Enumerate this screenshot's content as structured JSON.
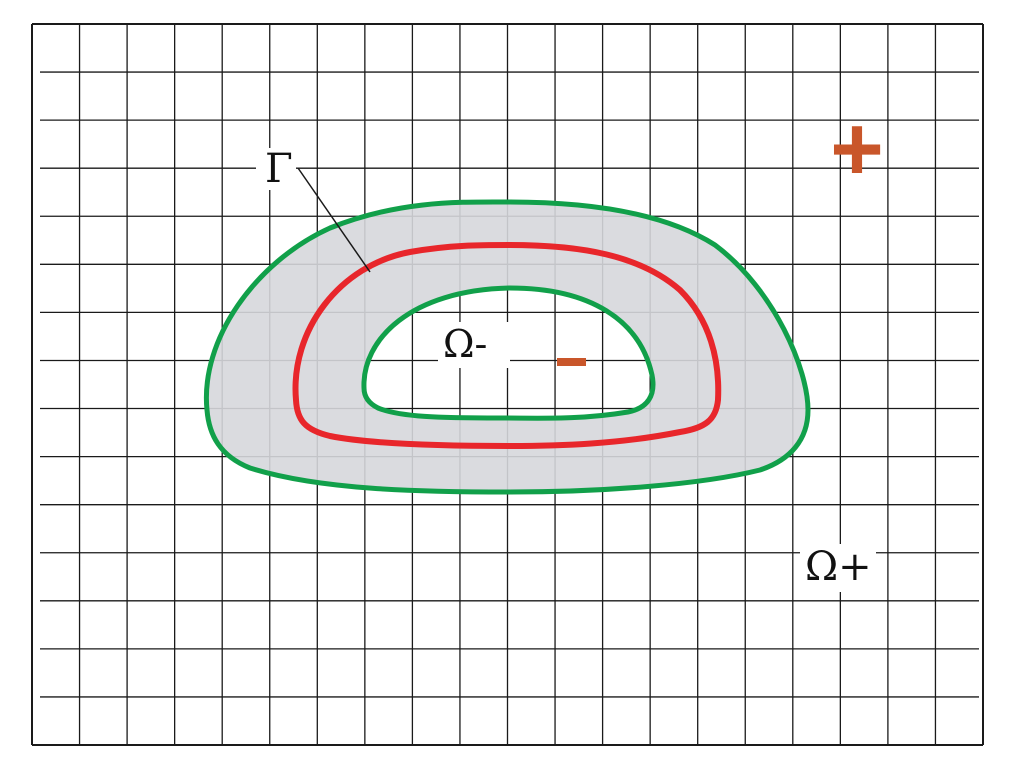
{
  "labels": {
    "gamma": "Γ",
    "omega_minus": "Ω-",
    "omega_plus": "Ω+",
    "plus_sign": "+",
    "minus_sign": "–"
  },
  "colors": {
    "grid": "#1a1a1a",
    "band_fill": "#d6d7db",
    "outer_contour": "#11a04a",
    "interface": "#e8262b",
    "sign_marks": "#c9562a",
    "background": "#ffffff"
  },
  "grid": {
    "columns": 20,
    "rows": 15
  }
}
